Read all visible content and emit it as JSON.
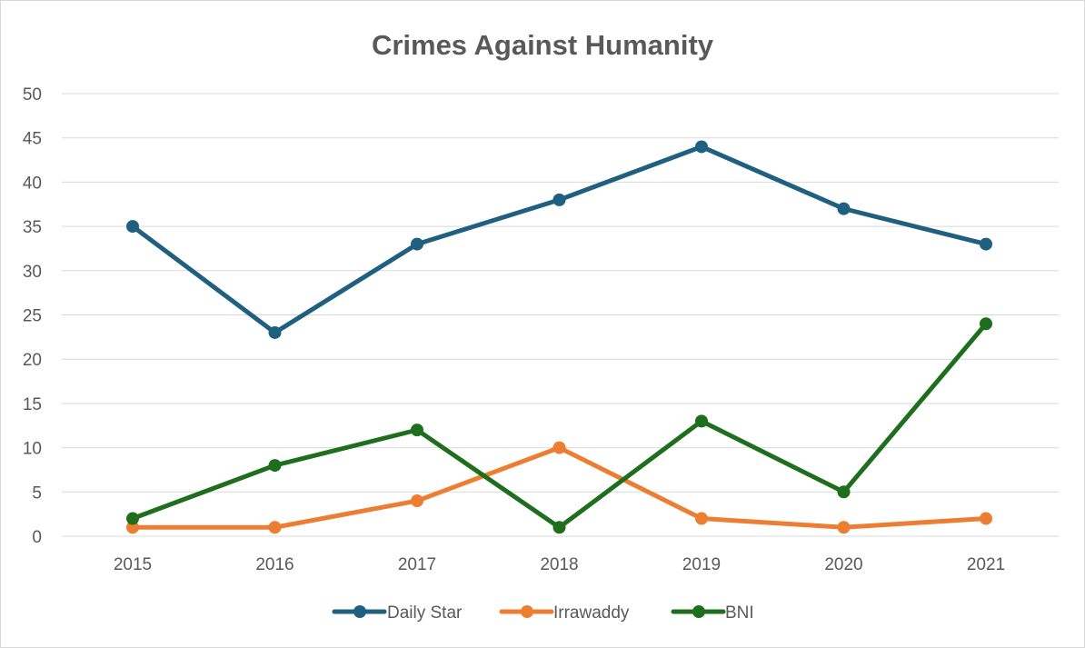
{
  "chart_data": {
    "type": "line",
    "title": "Crimes Against Humanity",
    "xlabel": "",
    "ylabel": "",
    "categories": [
      "2015",
      "2016",
      "2017",
      "2018",
      "2019",
      "2020",
      "2021"
    ],
    "ylim": [
      0,
      50
    ],
    "yticks": [
      "0",
      "5",
      "10",
      "15",
      "20",
      "25",
      "30",
      "35",
      "40",
      "45",
      "50"
    ],
    "grid": true,
    "legend_position": "bottom",
    "series": [
      {
        "name": "Daily Star",
        "color": "#1f5f7f",
        "values": [
          35,
          23,
          33,
          38,
          44,
          37,
          33
        ]
      },
      {
        "name": "Irrawaddy",
        "color": "#ed7d31",
        "values": [
          1,
          1,
          4,
          10,
          2,
          1,
          2
        ]
      },
      {
        "name": "BNI",
        "color": "#1e6e1e",
        "values": [
          2,
          8,
          12,
          1,
          13,
          5,
          24
        ]
      }
    ]
  }
}
